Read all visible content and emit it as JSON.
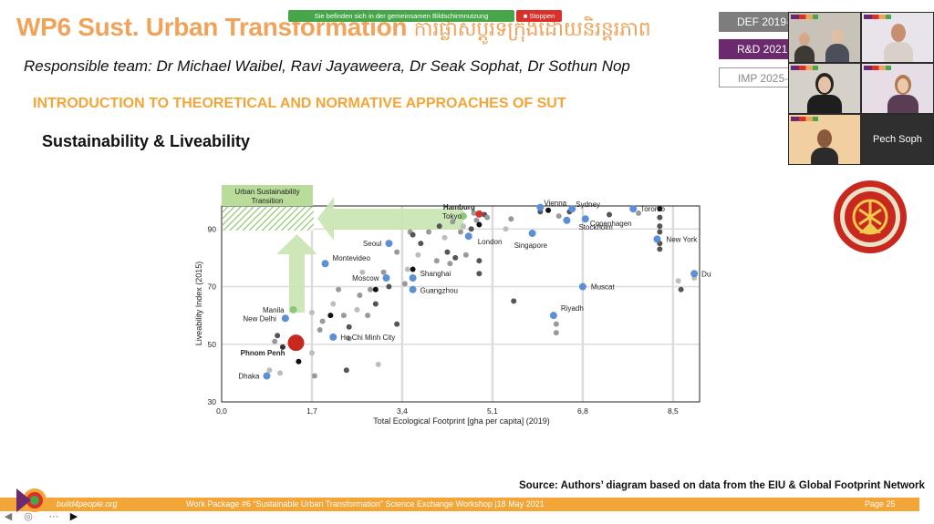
{
  "slide": {
    "title": "WP6 Sust. Urban Transformation",
    "title_khmer": "ការផ្លាស់ប្តូរទីក្រុងដោយនិរន្តរភាព",
    "team": "Responsible team: Dr Michael Waibel, Ravi Jayaweera, Dr Seak Sophat, Dr Sothun Nop",
    "section": "INTRODUCTION TO THEORETICAL AND NORMATIVE APPROACHES OF SUT",
    "subsection": "Sustainability & Liveability",
    "source": "Source: Authors’ diagram based on data from the EIU & Global Footprint Network"
  },
  "screen_share": {
    "message": "Sie befinden sich in der gemeinsamen Bildschirmnutzung",
    "stop_label": "Stoppen"
  },
  "phases": [
    "DEF 2019-",
    "R&D 2021-",
    "IMP 2025-"
  ],
  "video": {
    "participant_name": "Pech Soph"
  },
  "footer": {
    "site": "build4people.org",
    "caption": "Work Package #6 “Sustainable Urban Transformation” Science Exchange Workshop |18 May 2021",
    "page": "Page 25"
  },
  "colors": {
    "accent_orange": "#f3a538",
    "title_orange": "#f0a35a",
    "purple": "#6b2a6e",
    "city_blue": "#5b8fd6",
    "green_arrow": "#b9dc9a",
    "emblem_red": "#c8281e"
  },
  "chart_data": {
    "type": "scatter",
    "xlabel": "Total Ecological Footprint [gha per capita] (2019)",
    "ylabel": "Liveability Index (2015)",
    "xlim": [
      0,
      9.0
    ],
    "ylim": [
      30,
      98
    ],
    "x_ticks": [
      "0,0",
      "1,7",
      "3,4",
      "5,1",
      "6,8",
      "8,5"
    ],
    "x_tick_values": [
      0,
      1.7,
      3.4,
      5.1,
      6.8,
      8.5
    ],
    "y_ticks": [
      "30",
      "50",
      "70",
      "90"
    ],
    "y_tick_values": [
      30,
      50,
      70,
      90
    ],
    "grid": true,
    "annotation": "Urban Sustainability Transition",
    "labeled_points": [
      {
        "name": "Hamburg",
        "x": 4.85,
        "y": 95.2,
        "color": "#d9302c",
        "bold": true
      },
      {
        "name": "Tokyo",
        "x": 4.55,
        "y": 94.5,
        "color": "#8ec77a"
      },
      {
        "name": "Vienna",
        "x": 6.0,
        "y": 97.5,
        "color": "#5b8fd6"
      },
      {
        "name": "Sydney",
        "x": 6.6,
        "y": 97.0,
        "color": "#5b8fd6"
      },
      {
        "name": "Toronto",
        "x": 7.75,
        "y": 97.0,
        "color": "#5b8fd6"
      },
      {
        "name": "Copenhagen",
        "x": 6.85,
        "y": 93.5,
        "color": "#5b8fd6"
      },
      {
        "name": "Stockholm",
        "x": 6.5,
        "y": 93.0,
        "color": "#5b8fd6"
      },
      {
        "name": "London",
        "x": 4.65,
        "y": 87.5,
        "color": "#5b8fd6"
      },
      {
        "name": "Singapore",
        "x": 5.85,
        "y": 88.5,
        "color": "#5b8fd6"
      },
      {
        "name": "New York",
        "x": 8.2,
        "y": 86.5,
        "color": "#5b8fd6"
      },
      {
        "name": "Dubai",
        "x": 8.9,
        "y": 74.5,
        "color": "#5b8fd6"
      },
      {
        "name": "Muscat",
        "x": 6.8,
        "y": 70.0,
        "color": "#5b8fd6"
      },
      {
        "name": "Riyadh",
        "x": 6.25,
        "y": 60.0,
        "color": "#5b8fd6"
      },
      {
        "name": "Seoul",
        "x": 3.15,
        "y": 85.0,
        "color": "#5b8fd6"
      },
      {
        "name": "Montevideo",
        "x": 1.95,
        "y": 78.0,
        "color": "#5b8fd6"
      },
      {
        "name": "Moscow",
        "x": 3.1,
        "y": 73.0,
        "color": "#5b8fd6"
      },
      {
        "name": "Shanghai",
        "x": 3.6,
        "y": 73.0,
        "color": "#5b8fd6"
      },
      {
        "name": "Guangzhou",
        "x": 3.6,
        "y": 69.0,
        "color": "#5b8fd6"
      },
      {
        "name": "Manila",
        "x": 1.35,
        "y": 62.0,
        "color": "#8ec77a"
      },
      {
        "name": "New Delhi",
        "x": 1.2,
        "y": 59.0,
        "color": "#5b8fd6"
      },
      {
        "name": "Ho Chi Minh City",
        "x": 2.1,
        "y": 52.5,
        "color": "#5b8fd6"
      },
      {
        "name": "Phnom Penh",
        "x": 1.4,
        "y": 50.5,
        "color": "#c8281e",
        "bold": true,
        "big": true
      },
      {
        "name": "Dhaka",
        "x": 0.85,
        "y": 39.0,
        "color": "#5b8fd6"
      }
    ],
    "other_points": [
      {
        "x": 0.9,
        "y": 41.0,
        "c": "#bdbdbd"
      },
      {
        "x": 1.1,
        "y": 40.0,
        "c": "#bdbdbd"
      },
      {
        "x": 1.0,
        "y": 51.0,
        "c": "#999999"
      },
      {
        "x": 1.05,
        "y": 53.0,
        "c": "#555555"
      },
      {
        "x": 1.15,
        "y": 49.0,
        "c": "#333333"
      },
      {
        "x": 1.45,
        "y": 44.0,
        "c": "#111111"
      },
      {
        "x": 1.75,
        "y": 39.0,
        "c": "#999999"
      },
      {
        "x": 1.7,
        "y": 47.0,
        "c": "#bdbdbd"
      },
      {
        "x": 1.7,
        "y": 61.0,
        "c": "#bdbdbd"
      },
      {
        "x": 1.85,
        "y": 55.0,
        "c": "#999999"
      },
      {
        "x": 1.9,
        "y": 58.0,
        "c": "#999999"
      },
      {
        "x": 2.05,
        "y": 60.0,
        "c": "#111111"
      },
      {
        "x": 2.1,
        "y": 64.0,
        "c": "#bdbdbd"
      },
      {
        "x": 2.2,
        "y": 69.0,
        "c": "#999999"
      },
      {
        "x": 2.3,
        "y": 60.0,
        "c": "#999999"
      },
      {
        "x": 2.4,
        "y": 56.0,
        "c": "#555555"
      },
      {
        "x": 2.4,
        "y": 52.0,
        "c": "#999999"
      },
      {
        "x": 2.35,
        "y": 41.0,
        "c": "#555555"
      },
      {
        "x": 2.55,
        "y": 62.0,
        "c": "#bdbdbd"
      },
      {
        "x": 2.6,
        "y": 67.0,
        "c": "#999999"
      },
      {
        "x": 2.65,
        "y": 75.0,
        "c": "#bdbdbd"
      },
      {
        "x": 2.75,
        "y": 60.0,
        "c": "#999999"
      },
      {
        "x": 2.8,
        "y": 69.0,
        "c": "#999999"
      },
      {
        "x": 2.9,
        "y": 69.0,
        "c": "#111111"
      },
      {
        "x": 2.9,
        "y": 64.0,
        "c": "#555555"
      },
      {
        "x": 2.95,
        "y": 43.0,
        "c": "#bdbdbd"
      },
      {
        "x": 3.05,
        "y": 75.0,
        "c": "#999999"
      },
      {
        "x": 3.15,
        "y": 70.0,
        "c": "#555555"
      },
      {
        "x": 3.3,
        "y": 57.0,
        "c": "#555555"
      },
      {
        "x": 3.3,
        "y": 82.0,
        "c": "#999999"
      },
      {
        "x": 3.45,
        "y": 71.0,
        "c": "#999999"
      },
      {
        "x": 3.5,
        "y": 76.0,
        "c": "#bdbdbd"
      },
      {
        "x": 3.55,
        "y": 89.0,
        "c": "#999999"
      },
      {
        "x": 3.6,
        "y": 88.0,
        "c": "#555555"
      },
      {
        "x": 3.6,
        "y": 76.0,
        "c": "#111111"
      },
      {
        "x": 3.7,
        "y": 81.0,
        "c": "#bdbdbd"
      },
      {
        "x": 3.75,
        "y": 85.0,
        "c": "#555555"
      },
      {
        "x": 3.9,
        "y": 89.0,
        "c": "#999999"
      },
      {
        "x": 4.05,
        "y": 79.0,
        "c": "#999999"
      },
      {
        "x": 4.1,
        "y": 91.0,
        "c": "#555555"
      },
      {
        "x": 4.2,
        "y": 87.0,
        "c": "#bdbdbd"
      },
      {
        "x": 4.25,
        "y": 82.0,
        "c": "#555555"
      },
      {
        "x": 4.3,
        "y": 78.0,
        "c": "#999999"
      },
      {
        "x": 4.35,
        "y": 92.5,
        "c": "#999999"
      },
      {
        "x": 4.4,
        "y": 80.0,
        "c": "#555555"
      },
      {
        "x": 4.5,
        "y": 89.0,
        "c": "#999999"
      },
      {
        "x": 4.55,
        "y": 91.0,
        "c": "#bdbdbd"
      },
      {
        "x": 4.6,
        "y": 81.0,
        "c": "#999999"
      },
      {
        "x": 4.7,
        "y": 90.0,
        "c": "#555555"
      },
      {
        "x": 4.75,
        "y": 95.5,
        "c": "#999999"
      },
      {
        "x": 4.8,
        "y": 93.0,
        "c": "#999999"
      },
      {
        "x": 4.85,
        "y": 91.5,
        "c": "#111111"
      },
      {
        "x": 4.85,
        "y": 79.0,
        "c": "#555555"
      },
      {
        "x": 4.85,
        "y": 74.5,
        "c": "#555555"
      },
      {
        "x": 4.95,
        "y": 95.0,
        "c": "#555555"
      },
      {
        "x": 5.0,
        "y": 94.0,
        "c": "#999999"
      },
      {
        "x": 5.35,
        "y": 90.0,
        "c": "#bdbdbd"
      },
      {
        "x": 5.45,
        "y": 93.5,
        "c": "#999999"
      },
      {
        "x": 5.5,
        "y": 65.0,
        "c": "#555555"
      },
      {
        "x": 6.0,
        "y": 96.0,
        "c": "#555555"
      },
      {
        "x": 6.15,
        "y": 96.5,
        "c": "#111111"
      },
      {
        "x": 6.3,
        "y": 57.0,
        "c": "#999999"
      },
      {
        "x": 6.3,
        "y": 54.0,
        "c": "#999999"
      },
      {
        "x": 6.35,
        "y": 94.5,
        "c": "#999999"
      },
      {
        "x": 6.55,
        "y": 96.0,
        "c": "#555555"
      },
      {
        "x": 7.3,
        "y": 95.0,
        "c": "#555555"
      },
      {
        "x": 7.85,
        "y": 95.5,
        "c": "#999999"
      },
      {
        "x": 8.25,
        "y": 97.0,
        "c": "#111111"
      },
      {
        "x": 8.25,
        "y": 94.0,
        "c": "#555555"
      },
      {
        "x": 8.25,
        "y": 91.0,
        "c": "#555555"
      },
      {
        "x": 8.25,
        "y": 89.0,
        "c": "#555555"
      },
      {
        "x": 8.25,
        "y": 85.0,
        "c": "#555555"
      },
      {
        "x": 8.25,
        "y": 83.0,
        "c": "#555555"
      },
      {
        "x": 8.6,
        "y": 72.0,
        "c": "#bdbdbd"
      },
      {
        "x": 8.65,
        "y": 69.0,
        "c": "#555555"
      },
      {
        "x": 8.9,
        "y": 73.0,
        "c": "#bdbdbd"
      }
    ]
  }
}
